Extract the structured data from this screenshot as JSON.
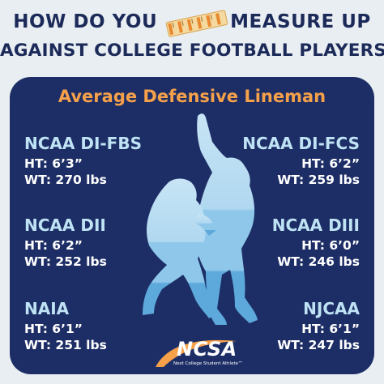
{
  "header": {
    "line1_left": "HOW DO YOU",
    "line1_right": "MEASURE UP",
    "line2": "AGAINST COLLEGE FOOTBALL PLAYERS?"
  },
  "panel": {
    "title": "Average Defensive Lineman"
  },
  "divisions": {
    "fbs": {
      "name": "NCAA DI-FBS",
      "ht": "HT: 6’3”",
      "wt": "WT: 270 lbs"
    },
    "fcs": {
      "name": "NCAA DI-FCS",
      "ht": "HT: 6’2”",
      "wt": "WT: 259 lbs"
    },
    "dii": {
      "name": "NCAA DII",
      "ht": "HT: 6’2”",
      "wt": "WT: 252 lbs"
    },
    "diii": {
      "name": "NCAA DIII",
      "ht": "HT: 6’0”",
      "wt": "WT: 246 lbs"
    },
    "naia": {
      "name": "NAIA",
      "ht": "HT: 6’1”",
      "wt": "WT: 251 lbs"
    },
    "njcaa": {
      "name": "NJCAA",
      "ht": "HT: 6’1”",
      "wt": "WT: 247 lbs"
    }
  },
  "logo": {
    "word": "NCSA",
    "tagline": "Next College Student Athlete™"
  },
  "colors": {
    "navy": "#1d2e66",
    "title_orange": "#f6a14a",
    "division_blue": "#bfe3f4",
    "player_light": "#b7dcf2",
    "player_mid": "#8fc8ea",
    "player_dark": "#62aee0"
  }
}
